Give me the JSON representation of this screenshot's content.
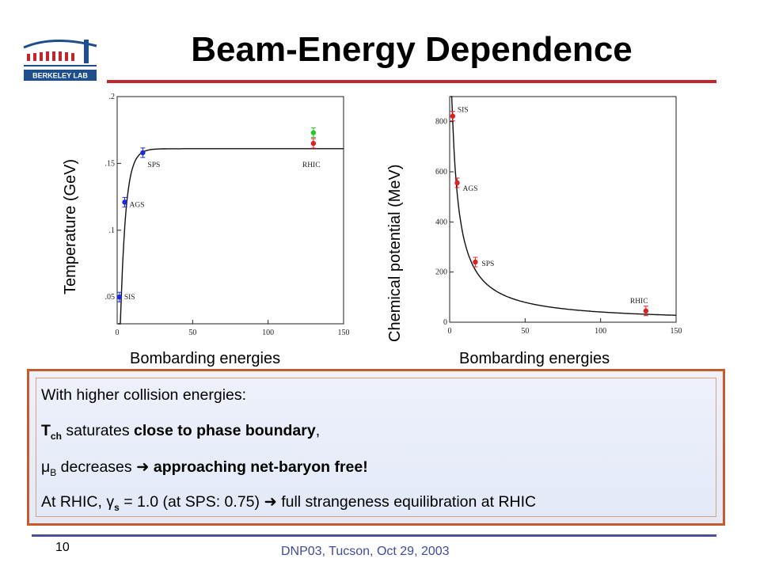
{
  "slide": {
    "title": "Beam-Energy Dependence",
    "logo_text": "BERKELEY LAB",
    "page_number": "10",
    "footer": "DNP03, Tucson, Oct 29, 2003"
  },
  "colors": {
    "title_rule": "#c0262c",
    "panel_border": "#c75a2a",
    "footer_rule": "#4a4f9e",
    "footer_text": "#3f4aa1"
  },
  "left_chart": {
    "ylabel": "Temperature (GeV)",
    "xlabel": "Bombarding energies"
  },
  "right_chart": {
    "ylabel": "Chemical potential (MeV)",
    "xlabel": "Bombarding energies"
  },
  "chart_data": [
    {
      "type": "scatter",
      "title": "",
      "xlabel": "Bombarding energies",
      "ylabel": "Temperature (GeV)",
      "xlim": [
        0,
        150
      ],
      "ylim": [
        0.03,
        0.2
      ],
      "x_ticks": [
        "0",
        "50",
        "100",
        "150"
      ],
      "y_ticks": [
        ".05",
        ".1",
        ".15",
        ".2"
      ],
      "y_tick_values": [
        0.05,
        0.1,
        0.15,
        0.2
      ],
      "series": [
        {
          "color": "#1a2ad8",
          "points": [
            {
              "label": "SIS",
              "x": 1.5,
              "y": 0.05
            },
            {
              "label": "AGS",
              "x": 5,
              "y": 0.121
            },
            {
              "label": "SPS",
              "x": 17,
              "y": 0.158
            }
          ]
        },
        {
          "color": "#e02020",
          "points": [
            {
              "label": "RHIC",
              "x": 130,
              "y": 0.165
            }
          ]
        },
        {
          "color": "#28c828",
          "points": [
            {
              "label": "",
              "x": 130,
              "y": 0.173
            }
          ]
        }
      ],
      "curve": {
        "type": "fit",
        "asymptote": 0.161
      }
    },
    {
      "type": "scatter",
      "title": "",
      "xlabel": "Bombarding energies",
      "ylabel": "Chemical potential (MeV)",
      "xlim": [
        0,
        150
      ],
      "ylim": [
        0,
        900
      ],
      "x_ticks": [
        "0",
        "50",
        "100",
        "150"
      ],
      "y_ticks": [
        "0",
        "200",
        "400",
        "600",
        "800"
      ],
      "series": [
        {
          "color": "#e02020",
          "points": [
            {
              "label": "SIS",
              "x": 2,
              "y": 822
            },
            {
              "label": "AGS",
              "x": 5,
              "y": 556
            },
            {
              "label": "SPS",
              "x": 17,
              "y": 240
            },
            {
              "label": "RHIC",
              "x": 130,
              "y": 45
            }
          ]
        }
      ],
      "curve": {
        "type": "fit"
      }
    }
  ],
  "summary": {
    "line1": "With higher collision energies:",
    "line2": {
      "symbol": "T",
      "sub": "ch",
      "text": " saturates ",
      "bold": "close to phase boundary",
      "end": ","
    },
    "line3": {
      "symbol": "μ",
      "sub": "B",
      "text": " decreases ",
      "arrow": "",
      "bold": "approaching net-baryon free!"
    },
    "line4": {
      "prefix": "At RHIC, ",
      "symbol": "γ",
      "sub": "s",
      "text": " = 1.0 (at SPS: 0.75) ",
      "arrow": "",
      "end": " full strangeness equilibration at RHIC"
    }
  }
}
